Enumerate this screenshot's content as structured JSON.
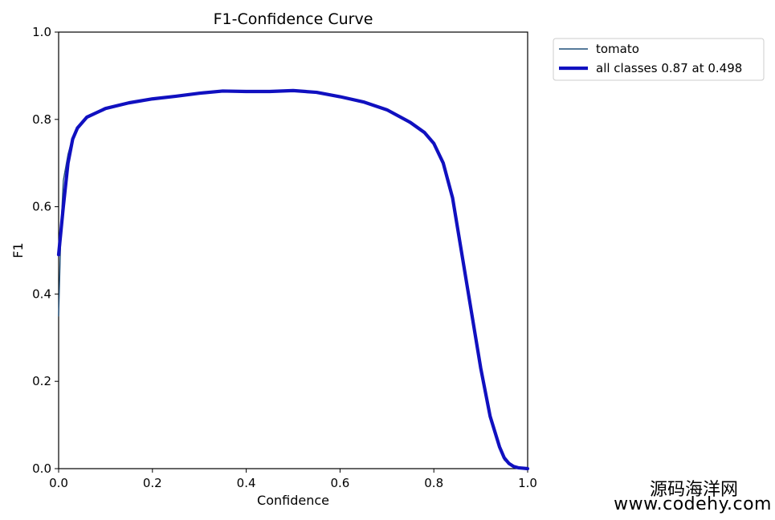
{
  "chart_data": {
    "type": "line",
    "title": "F1-Confidence Curve",
    "xlabel": "Confidence",
    "ylabel": "F1",
    "xlim": [
      0.0,
      1.0
    ],
    "ylim": [
      0.0,
      1.0
    ],
    "xticks": [
      "0.0",
      "0.2",
      "0.4",
      "0.6",
      "0.8",
      "1.0"
    ],
    "yticks": [
      "0.0",
      "0.2",
      "0.4",
      "0.6",
      "0.8",
      "1.0"
    ],
    "grid": false,
    "legend_position": "outside-top-right",
    "series": [
      {
        "name": "tomato",
        "color": "#1f4e79",
        "x": [
          0.0,
          0.005,
          0.01,
          0.02,
          0.03,
          0.04,
          0.06,
          0.08,
          0.1,
          0.15,
          0.2,
          0.25,
          0.3,
          0.35,
          0.4,
          0.45,
          0.5,
          0.55,
          0.6,
          0.65,
          0.7,
          0.75,
          0.78,
          0.8,
          0.82,
          0.84,
          0.86,
          0.88,
          0.9,
          0.92,
          0.94,
          0.95,
          0.96,
          0.97,
          0.98,
          0.99,
          1.0
        ],
        "y": [
          0.35,
          0.55,
          0.66,
          0.72,
          0.76,
          0.78,
          0.805,
          0.815,
          0.825,
          0.838,
          0.847,
          0.853,
          0.86,
          0.865,
          0.864,
          0.864,
          0.866,
          0.862,
          0.852,
          0.84,
          0.822,
          0.793,
          0.77,
          0.745,
          0.7,
          0.62,
          0.49,
          0.36,
          0.23,
          0.12,
          0.045,
          0.02,
          0.01,
          0.004,
          0.002,
          0.001,
          0.0
        ]
      },
      {
        "name": "all classes 0.87 at 0.498",
        "color": "#1010c0",
        "x": [
          0.0,
          0.01,
          0.02,
          0.03,
          0.04,
          0.06,
          0.08,
          0.1,
          0.15,
          0.2,
          0.25,
          0.3,
          0.35,
          0.4,
          0.45,
          0.5,
          0.55,
          0.6,
          0.65,
          0.7,
          0.75,
          0.78,
          0.8,
          0.82,
          0.84,
          0.86,
          0.88,
          0.9,
          0.92,
          0.94,
          0.95,
          0.96,
          0.97,
          0.98,
          0.99,
          1.0
        ],
        "y": [
          0.49,
          0.6,
          0.7,
          0.755,
          0.78,
          0.805,
          0.815,
          0.825,
          0.838,
          0.847,
          0.853,
          0.86,
          0.865,
          0.864,
          0.864,
          0.866,
          0.862,
          0.852,
          0.84,
          0.822,
          0.793,
          0.77,
          0.745,
          0.7,
          0.62,
          0.49,
          0.36,
          0.23,
          0.12,
          0.05,
          0.025,
          0.012,
          0.005,
          0.002,
          0.001,
          0.0
        ]
      }
    ]
  },
  "watermark": {
    "chinese": "源码海洋网",
    "url": "www.codehy.com"
  }
}
